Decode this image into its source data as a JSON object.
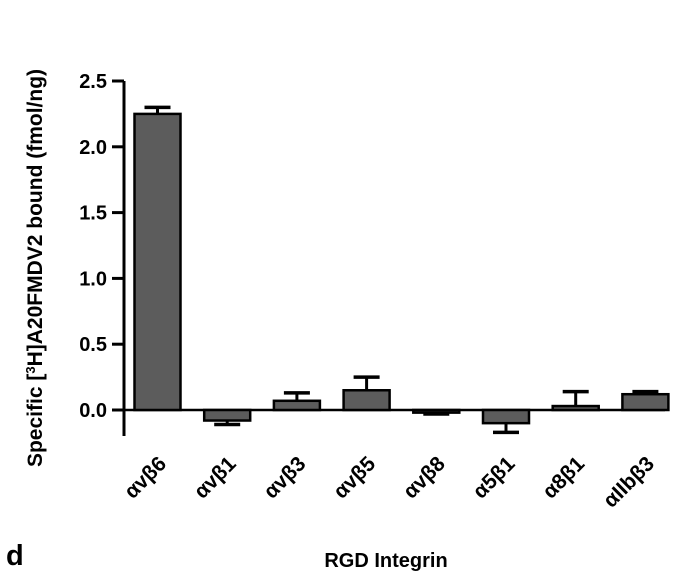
{
  "chart_data": {
    "type": "bar",
    "panel_label": "d",
    "xlabel": "RGD Integrin",
    "ylabel_parts": {
      "prefix": "Specific [",
      "superscript": "3",
      "suffix": "H]A20FMDV2 bound (fmol/ng)"
    },
    "ylim": [
      -0.2,
      2.5
    ],
    "yticks": [
      "0.0",
      "0.5",
      "1.0",
      "1.5",
      "2.0",
      "2.5"
    ],
    "categories": [
      "αvβ6",
      "αvβ1",
      "αvβ3",
      "αvβ5",
      "αvβ8",
      "α5β1",
      "α8β1",
      "αIIbβ3"
    ],
    "values": [
      2.25,
      -0.08,
      0.07,
      0.15,
      -0.02,
      -0.1,
      0.03,
      0.12
    ],
    "error_plus": [
      0.05,
      0.03,
      0.06,
      0.1,
      0.01,
      0.07,
      0.11,
      0.02
    ],
    "error_direction": [
      "up",
      "down",
      "up",
      "up",
      "down",
      "down",
      "up",
      "up"
    ],
    "grid": false,
    "legend": "none",
    "colors": {
      "bar": "#5c5c5c",
      "axis": "#000000"
    }
  }
}
